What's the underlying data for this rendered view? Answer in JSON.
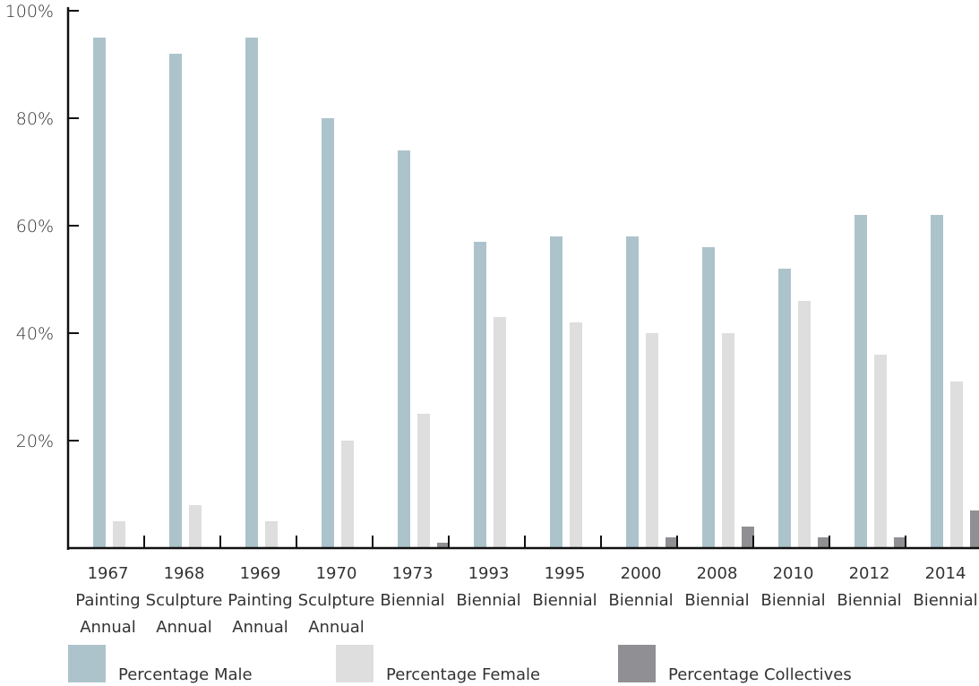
{
  "chart_data": {
    "type": "bar",
    "categories": [
      [
        "1967",
        "Painting",
        "Annual"
      ],
      [
        "1968",
        "Sculpture",
        "Annual"
      ],
      [
        "1969",
        "Painting",
        "Annual"
      ],
      [
        "1970",
        "Sculpture",
        "Annual"
      ],
      [
        "1973",
        "Biennial"
      ],
      [
        "1993",
        "Biennial"
      ],
      [
        "1995",
        "Biennial"
      ],
      [
        "2000",
        "Biennial"
      ],
      [
        "2008",
        "Biennial"
      ],
      [
        "2010",
        "Biennial"
      ],
      [
        "2012",
        "Biennial"
      ],
      [
        "2014",
        "Biennial"
      ]
    ],
    "series": [
      {
        "name": "Percentage Male",
        "color": "#adc3cb",
        "values": [
          95,
          92,
          95,
          80,
          74,
          57,
          58,
          58,
          56,
          52,
          62,
          62
        ]
      },
      {
        "name": "Percentage Female",
        "color": "#dedede",
        "values": [
          5,
          8,
          5,
          20,
          25,
          43,
          42,
          40,
          40,
          46,
          36,
          31
        ]
      },
      {
        "name": "Percentage Collectives",
        "color": "#909094",
        "values": [
          0,
          0,
          0,
          0,
          1,
          0,
          0,
          2,
          4,
          2,
          2,
          7
        ]
      }
    ],
    "yticks": [
      "20%",
      "40%",
      "60%",
      "80%",
      "100%"
    ],
    "ylim": [
      0,
      100
    ],
    "title": "",
    "xlabel": "",
    "ylabel": "",
    "grid": false,
    "legend_position": "bottom"
  }
}
